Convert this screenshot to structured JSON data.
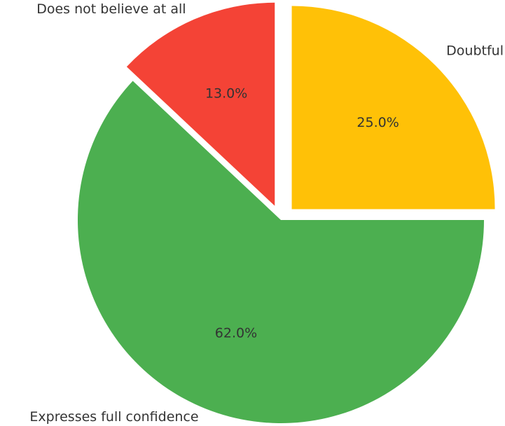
{
  "chart_data": {
    "type": "pie",
    "categories": [
      "Doubtful",
      "Expresses full confidence",
      "Does not believe at all"
    ],
    "values": [
      25.0,
      62.0,
      13.0
    ],
    "value_labels": [
      "25.0%",
      "62.0%",
      "13.0%"
    ],
    "colors": [
      "#ffc107",
      "#4caf50",
      "#f44336"
    ],
    "exploded": [
      true,
      false,
      true
    ],
    "start_angle_deg": 90,
    "direction": "clockwise",
    "title": "",
    "legend": "none"
  }
}
